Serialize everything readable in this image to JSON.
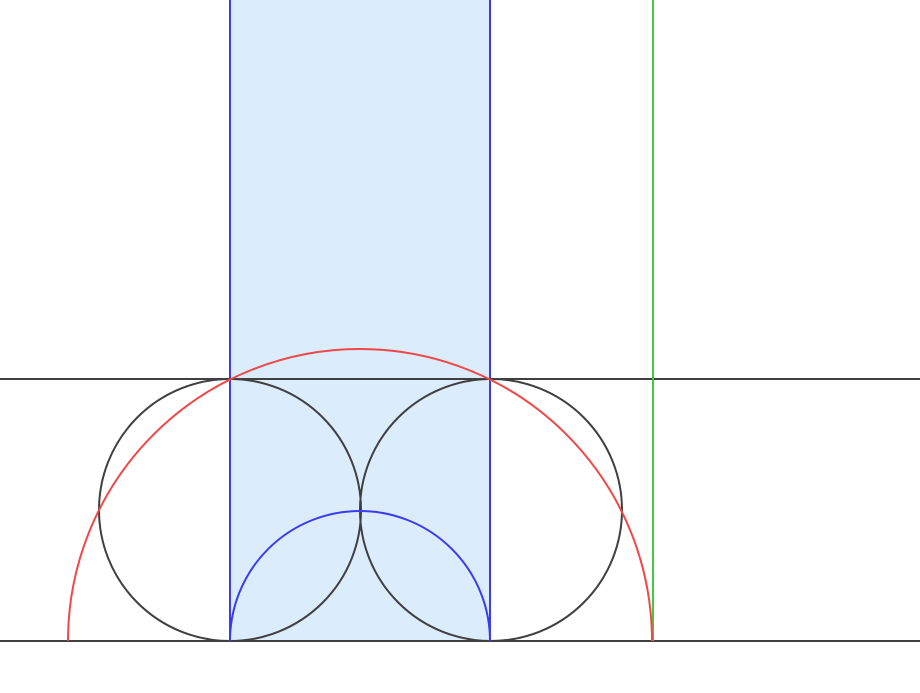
{
  "colors": {
    "background": "#ffffff",
    "strip_fill": "#dbecfc",
    "strip_edge": "#3b3bf0",
    "inner_arc": "#3b3bf0",
    "outer_arc": "#f04848",
    "circle": "#404040",
    "baseline": "#404040",
    "green_line": "#3ccc3c"
  }
}
